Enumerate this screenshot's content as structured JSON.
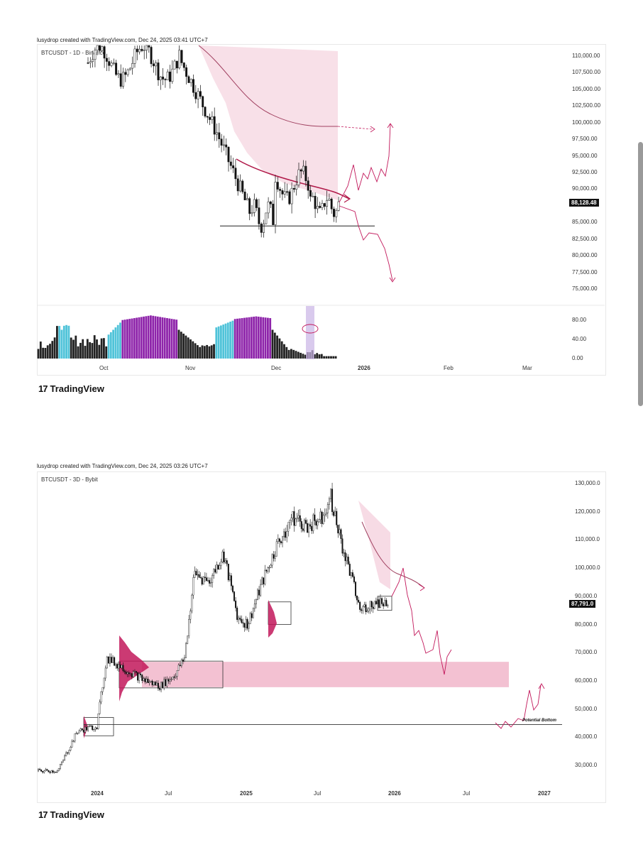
{
  "chart1": {
    "credit": "lusydrop created with TradingView.com, Dec 24, 2025 03:41 UTC+7",
    "symbol": "BTCUSDT - 1D - Binance",
    "price_badge": "88,128.48",
    "yticks": [
      "110,000.00",
      "107,500.00",
      "105,000.00",
      "102,500.00",
      "100,000.00",
      "97,500.00",
      "95,000.00",
      "92,500.00",
      "90,000.00",
      "85,000.00",
      "82,500.00",
      "80,000.00",
      "77,500.00",
      "75,000.00"
    ],
    "osc_ticks": [
      "80.00",
      "40.00",
      "0.00"
    ],
    "xticks": [
      "Oct",
      "Nov",
      "Dec",
      "2026",
      "Feb",
      "Mar"
    ]
  },
  "chart2": {
    "credit": "lusydrop created with TradingView.com, Dec 24, 2025 03:26 UTC+7",
    "symbol": "BTCUSDT - 3D - Bybit",
    "price_badge": "87,791.0",
    "yticks": [
      "130,000.0",
      "120,000.0",
      "110,000.0",
      "100,000.0",
      "90,000.0",
      "80,000.0",
      "70,000.0",
      "60,000.0",
      "50,000.0",
      "40,000.0",
      "30,000.0"
    ],
    "xticks": [
      "2024",
      "Jul",
      "2025",
      "Jul",
      "2026",
      "Jul",
      "2027"
    ],
    "annotation": "Potential Bottom"
  },
  "logo_text": "TradingView",
  "colors": {
    "accent": "#c2185b",
    "zone": "#f3c1d2",
    "purple": "#8e24aa",
    "cyan": "#4fc3d9"
  },
  "chart_data": [
    {
      "type": "candlestick",
      "title": "BTCUSDT - 1D - Binance",
      "x": [
        "Oct",
        "Nov",
        "Dec",
        "2026",
        "Feb",
        "Mar"
      ],
      "ylim": [
        75000,
        110000
      ],
      "last_price": 88128.48,
      "support_level": 85000,
      "oscillator_range": [
        0,
        80
      ]
    },
    {
      "type": "candlestick",
      "title": "BTCUSDT - 3D - Bybit",
      "x": [
        "2024",
        "Jul",
        "2025",
        "Jul",
        "2026",
        "Jul",
        "2027"
      ],
      "ylim": [
        30000,
        130000
      ],
      "last_price": 87791.0,
      "zone": [
        59000,
        68000
      ],
      "potential_bottom": 45000
    }
  ]
}
